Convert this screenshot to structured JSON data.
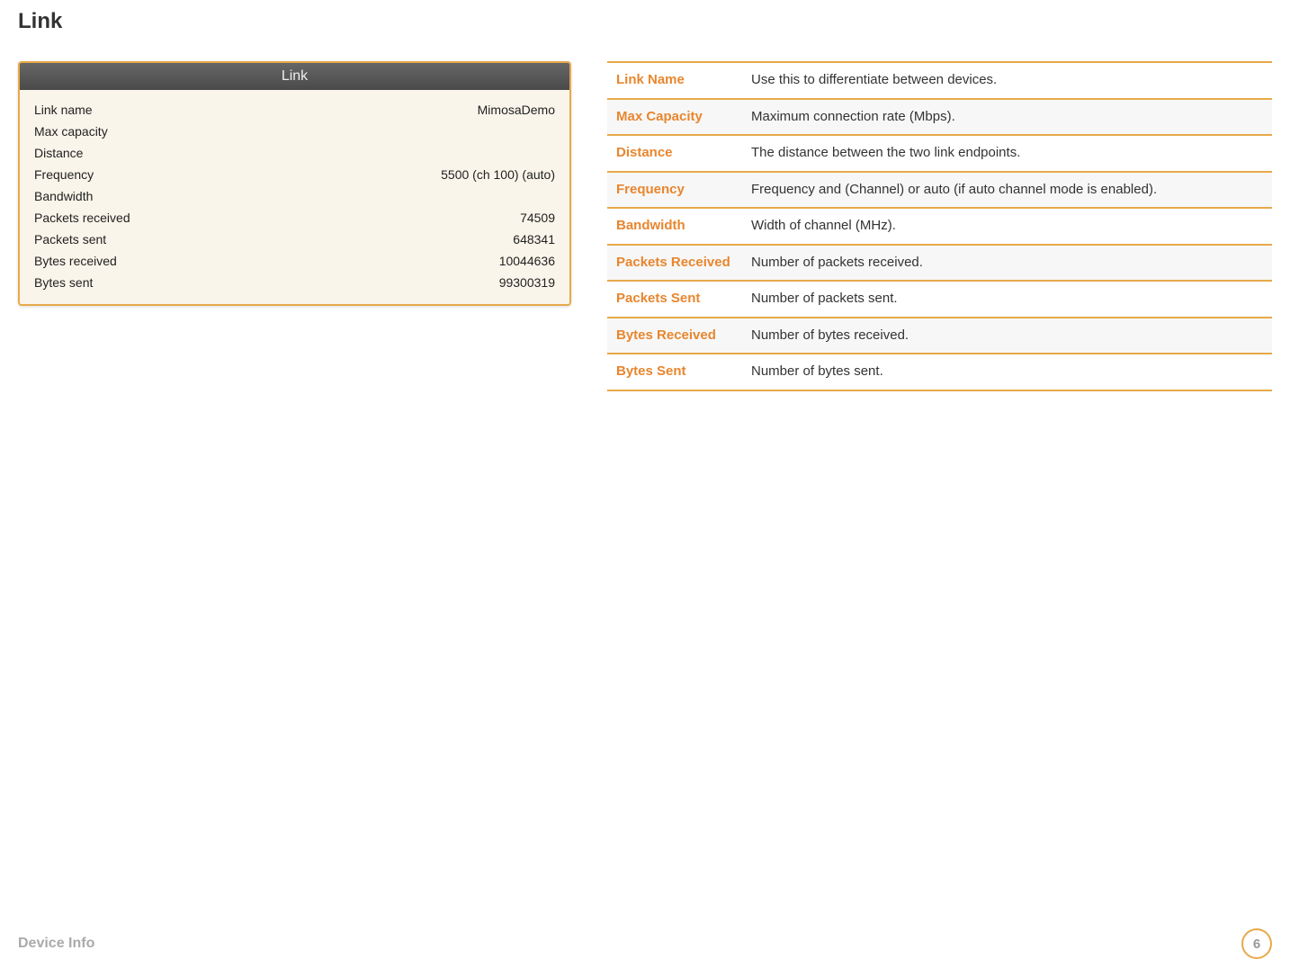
{
  "page": {
    "title": "Link",
    "footer_label": "Device Info",
    "page_number": "6"
  },
  "colors": {
    "accent_orange": "#e8a94a",
    "term_orange": "#e8862e",
    "panel_bg": "#faf5ea",
    "header_bg": "#555555",
    "text_dark": "#333333",
    "footer_grey": "#aaaaaa"
  },
  "panel": {
    "header": "Link",
    "rows": [
      {
        "label": "Link name",
        "value": "MimosaDemo"
      },
      {
        "label": "Max capacity",
        "value": ""
      },
      {
        "label": "Distance",
        "value": ""
      },
      {
        "label": "Frequency",
        "value": "5500 (ch 100) (auto)"
      },
      {
        "label": "Bandwidth",
        "value": ""
      },
      {
        "label": "Packets received",
        "value": "74509"
      },
      {
        "label": "Packets sent",
        "value": "648341"
      },
      {
        "label": "Bytes received",
        "value": "10044636"
      },
      {
        "label": "Bytes sent",
        "value": "99300319"
      }
    ]
  },
  "definitions": {
    "rows": [
      {
        "term": "Link Name",
        "desc": "Use this to differentiate between devices."
      },
      {
        "term": "Max Capacity",
        "desc": "Maximum connection rate (Mbps)."
      },
      {
        "term": "Distance",
        "desc": "The distance between the two link endpoints."
      },
      {
        "term": "Frequency",
        "desc": "Frequency and (Channel) or auto (if auto channel mode is enabled)."
      },
      {
        "term": "Bandwidth",
        "desc": "Width of channel (MHz)."
      },
      {
        "term": "Packets Received",
        "desc": "Number of packets received."
      },
      {
        "term": "Packets Sent",
        "desc": "Number of packets sent."
      },
      {
        "term": "Bytes Received",
        "desc": "Number of bytes received."
      },
      {
        "term": "Bytes Sent",
        "desc": "Number of bytes sent."
      }
    ]
  }
}
